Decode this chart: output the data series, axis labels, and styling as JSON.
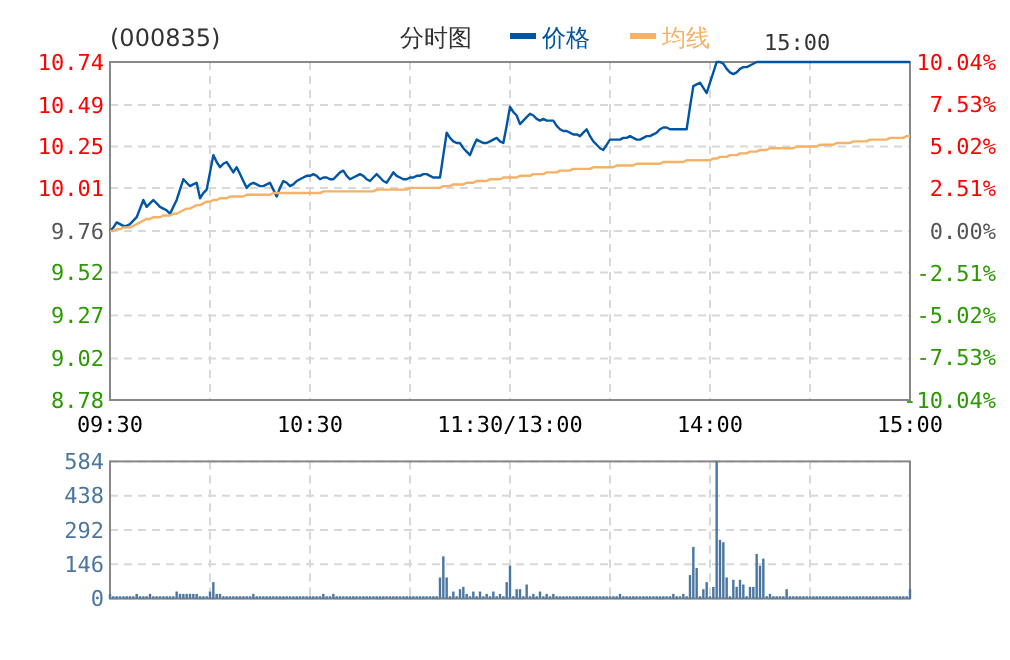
{
  "chart_data": [
    {
      "type": "line",
      "title": "(000835)",
      "subtitle": "分时图",
      "annotations": [
        "15:00"
      ],
      "legend": "top",
      "grid": true,
      "marker": "none",
      "line_style": "solid",
      "categories": [
        "09:30",
        null,
        null,
        null,
        null,
        null,
        null,
        null,
        null,
        null,
        null,
        null,
        null,
        null,
        null,
        null,
        null,
        null,
        null,
        null,
        null,
        null,
        null,
        null,
        null,
        null,
        null,
        null,
        null,
        null,
        null,
        null,
        null,
        null,
        null,
        null,
        null,
        null,
        null,
        null,
        null,
        null,
        null,
        null,
        null,
        null,
        null,
        null,
        null,
        null,
        null,
        null,
        null,
        null,
        null,
        null,
        null,
        null,
        null,
        null,
        "10:30",
        null,
        null,
        null,
        null,
        null,
        null,
        null,
        null,
        null,
        null,
        null,
        null,
        null,
        null,
        null,
        null,
        null,
        null,
        null,
        null,
        null,
        null,
        null,
        null,
        null,
        null,
        null,
        null,
        null,
        null,
        null,
        null,
        null,
        null,
        null,
        null,
        null,
        null,
        null,
        null,
        null,
        null,
        null,
        null,
        null,
        null,
        null,
        null,
        null,
        null,
        null,
        null,
        null,
        null,
        null,
        null,
        null,
        null,
        null,
        "11:30/13:00",
        null,
        null,
        null,
        null,
        null,
        null,
        null,
        null,
        null,
        null,
        null,
        null,
        null,
        null,
        null,
        null,
        null,
        null,
        null,
        null,
        null,
        null,
        null,
        null,
        null,
        null,
        null,
        null,
        null,
        null,
        null,
        null,
        null,
        null,
        null,
        null,
        null,
        null,
        null,
        null,
        null,
        null,
        null,
        null,
        null,
        null,
        null,
        null,
        null,
        null,
        null,
        null,
        null,
        null,
        null,
        null,
        null,
        null,
        null,
        "14:00",
        null,
        null,
        null,
        null,
        null,
        null,
        null,
        null,
        null,
        null,
        null,
        null,
        null,
        null,
        null,
        null,
        null,
        null,
        null,
        null,
        null,
        null,
        null,
        null,
        null,
        null,
        null,
        null,
        null,
        null,
        null,
        null,
        null,
        null,
        null,
        null,
        null,
        null,
        null,
        null,
        null,
        null,
        null,
        null,
        null,
        null,
        null,
        null,
        null,
        null,
        null,
        null,
        null,
        null,
        null,
        null,
        null,
        null,
        null,
        "15:00"
      ],
      "ylim": [
        8.78,
        10.74
      ],
      "yticks": [
        8.78,
        9.02,
        9.27,
        9.52,
        9.76,
        10.01,
        10.25,
        10.49,
        10.74
      ],
      "y2lim": [
        -10.04,
        10.04
      ],
      "y2ticks": [
        {
          "value": -10.04,
          "label": "-10.04%"
        },
        {
          "value": -7.53,
          "label": "-7.53%"
        },
        {
          "value": -5.02,
          "label": "-5.02%"
        },
        {
          "value": -2.51,
          "label": "-2.51%"
        },
        {
          "value": 0,
          "label": "0.00%"
        },
        {
          "value": 2.51,
          "label": "2.51%"
        },
        {
          "value": 5.02,
          "label": "5.02%"
        },
        {
          "value": 7.53,
          "label": "7.53%"
        },
        {
          "value": 10.04,
          "label": "10.04%"
        }
      ],
      "series": [
        {
          "name": "价格",
          "color": "#0055a5",
          "values": [
            9.76,
            9.78,
            9.81,
            9.8,
            9.79,
            9.79,
            9.8,
            9.82,
            9.84,
            9.89,
            9.94,
            9.9,
            9.92,
            9.94,
            9.92,
            9.9,
            9.89,
            9.88,
            9.86,
            9.9,
            9.94,
            10.0,
            10.06,
            10.04,
            10.02,
            10.03,
            10.04,
            9.95,
            9.98,
            10.0,
            10.1,
            10.2,
            10.16,
            10.13,
            10.15,
            10.16,
            10.13,
            10.1,
            10.13,
            10.09,
            10.05,
            10.01,
            10.03,
            10.04,
            10.03,
            10.02,
            10.02,
            10.03,
            10.04,
            10.0,
            9.96,
            10.01,
            10.05,
            10.04,
            10.02,
            10.03,
            10.05,
            10.06,
            10.07,
            10.08,
            10.08,
            10.09,
            10.08,
            10.06,
            10.07,
            10.07,
            10.06,
            10.06,
            10.08,
            10.1,
            10.11,
            10.08,
            10.06,
            10.07,
            10.08,
            10.09,
            10.08,
            10.06,
            10.05,
            10.07,
            10.09,
            10.07,
            10.05,
            10.04,
            10.07,
            10.1,
            10.08,
            10.07,
            10.06,
            10.06,
            10.07,
            10.07,
            10.08,
            10.08,
            10.09,
            10.09,
            10.08,
            10.07,
            10.07,
            10.07,
            10.2,
            10.33,
            10.3,
            10.28,
            10.27,
            10.27,
            10.24,
            10.22,
            10.2,
            10.25,
            10.29,
            10.28,
            10.27,
            10.27,
            10.28,
            10.29,
            10.3,
            10.28,
            10.27,
            10.37,
            10.48,
            10.45,
            10.43,
            10.38,
            10.4,
            10.42,
            10.44,
            10.43,
            10.41,
            10.4,
            10.41,
            10.4,
            10.4,
            10.4,
            10.37,
            10.35,
            10.34,
            10.34,
            10.33,
            10.32,
            10.32,
            10.31,
            10.33,
            10.35,
            10.31,
            10.28,
            10.26,
            10.24,
            10.23,
            10.26,
            10.29,
            10.29,
            10.29,
            10.29,
            10.3,
            10.3,
            10.31,
            10.3,
            10.29,
            10.29,
            10.3,
            10.31,
            10.31,
            10.32,
            10.33,
            10.35,
            10.36,
            10.36,
            10.35,
            10.35,
            10.35,
            10.35,
            10.35,
            10.35,
            10.48,
            10.6,
            10.61,
            10.62,
            10.59,
            10.56,
            10.62,
            10.68,
            10.74,
            10.74,
            10.73,
            10.7,
            10.68,
            10.67,
            10.68,
            10.7,
            10.71,
            10.71,
            10.72,
            10.73,
            10.74,
            10.74,
            10.74,
            10.74,
            10.74,
            10.74,
            10.74,
            10.74,
            10.74,
            10.74,
            10.74,
            10.74,
            10.74,
            10.74,
            10.74,
            10.74,
            10.74,
            10.74,
            10.74,
            10.74,
            10.74,
            10.74,
            10.74,
            10.74,
            10.74,
            10.74,
            10.74,
            10.74,
            10.74,
            10.74,
            10.74,
            10.74,
            10.74,
            10.74,
            10.74,
            10.74,
            10.74,
            10.74,
            10.74,
            10.74,
            10.74,
            10.74,
            10.74,
            10.74,
            10.74,
            10.74,
            10.74
          ]
        },
        {
          "name": "均线",
          "color": "#f5b266",
          "values": [
            9.76,
            9.76,
            9.77,
            9.77,
            9.78,
            9.78,
            9.78,
            9.79,
            9.8,
            9.81,
            9.82,
            9.83,
            9.83,
            9.84,
            9.84,
            9.84,
            9.85,
            9.85,
            9.85,
            9.86,
            9.86,
            9.87,
            9.88,
            9.89,
            9.89,
            9.9,
            9.91,
            9.91,
            9.92,
            9.93,
            9.93,
            9.94,
            9.94,
            9.95,
            9.95,
            9.95,
            9.96,
            9.96,
            9.96,
            9.96,
            9.96,
            9.97,
            9.97,
            9.97,
            9.97,
            9.97,
            9.97,
            9.97,
            9.97,
            9.98,
            9.98,
            9.98,
            9.98,
            9.98,
            9.98,
            9.98,
            9.98,
            9.98,
            9.98,
            9.98,
            9.98,
            9.98,
            9.98,
            9.98,
            9.99,
            9.99,
            9.99,
            9.99,
            9.99,
            9.99,
            9.99,
            9.99,
            9.99,
            9.99,
            9.99,
            9.99,
            9.99,
            9.99,
            9.99,
            9.99,
            10.0,
            10.0,
            10.0,
            10.0,
            10.0,
            10.0,
            10.0,
            10.0,
            10.0,
            10.0,
            10.01,
            10.01,
            10.01,
            10.01,
            10.01,
            10.01,
            10.01,
            10.01,
            10.01,
            10.01,
            10.02,
            10.02,
            10.02,
            10.03,
            10.03,
            10.03,
            10.03,
            10.04,
            10.04,
            10.04,
            10.05,
            10.05,
            10.05,
            10.05,
            10.06,
            10.06,
            10.06,
            10.06,
            10.07,
            10.07,
            10.07,
            10.07,
            10.07,
            10.08,
            10.08,
            10.08,
            10.08,
            10.09,
            10.09,
            10.09,
            10.09,
            10.1,
            10.1,
            10.1,
            10.1,
            10.11,
            10.11,
            10.11,
            10.11,
            10.12,
            10.12,
            10.12,
            10.12,
            10.12,
            10.12,
            10.13,
            10.13,
            10.13,
            10.13,
            10.13,
            10.13,
            10.13,
            10.14,
            10.14,
            10.14,
            10.14,
            10.14,
            10.14,
            10.15,
            10.15,
            10.15,
            10.15,
            10.15,
            10.15,
            10.15,
            10.15,
            10.16,
            10.16,
            10.16,
            10.16,
            10.16,
            10.16,
            10.16,
            10.17,
            10.17,
            10.17,
            10.17,
            10.17,
            10.17,
            10.17,
            10.17,
            10.18,
            10.18,
            10.19,
            10.19,
            10.19,
            10.2,
            10.2,
            10.2,
            10.21,
            10.21,
            10.21,
            10.22,
            10.22,
            10.22,
            10.23,
            10.23,
            10.23,
            10.24,
            10.24,
            10.24,
            10.24,
            10.24,
            10.24,
            10.24,
            10.24,
            10.25,
            10.25,
            10.25,
            10.25,
            10.25,
            10.25,
            10.25,
            10.26,
            10.26,
            10.26,
            10.26,
            10.26,
            10.27,
            10.27,
            10.27,
            10.27,
            10.27,
            10.28,
            10.28,
            10.28,
            10.28,
            10.28,
            10.29,
            10.29,
            10.29,
            10.29,
            10.29,
            10.29,
            10.3,
            10.3,
            10.3,
            10.3,
            10.3,
            10.31,
            10.31
          ]
        }
      ]
    },
    {
      "type": "bar",
      "grid": true,
      "color": "#4a76a0",
      "ylim": [
        0,
        584
      ],
      "yticks": [
        0,
        146,
        292,
        438,
        584
      ],
      "categories": [
        null,
        null,
        null,
        null,
        null,
        null,
        null,
        null,
        null,
        null,
        null,
        null,
        null,
        null,
        null,
        null,
        null,
        null,
        null,
        null,
        null,
        null,
        null,
        null,
        null,
        null,
        null,
        null,
        null,
        null,
        null,
        null,
        null,
        null,
        null,
        null,
        null,
        null,
        null,
        null,
        null,
        null,
        null,
        null,
        null,
        null,
        null,
        null,
        null,
        null,
        null,
        null,
        null,
        null,
        null,
        null,
        null,
        null,
        null,
        null,
        null,
        null,
        null,
        null,
        null,
        null,
        null,
        null,
        null,
        null,
        null,
        null,
        null,
        null,
        null,
        null,
        null,
        null,
        null,
        null,
        null,
        null,
        null,
        null,
        null,
        null,
        null,
        null,
        null,
        null,
        null,
        null,
        null,
        null,
        null,
        null,
        null,
        null,
        null,
        null,
        null,
        null,
        null,
        null,
        null,
        null,
        null,
        null,
        null,
        null,
        null,
        null,
        null,
        null,
        null,
        null,
        null,
        null,
        null,
        null,
        null,
        null,
        null,
        null,
        null,
        null,
        null,
        null,
        null,
        null,
        null,
        null,
        null,
        null,
        null,
        null,
        null,
        null,
        null,
        null,
        null,
        null,
        null,
        null,
        null,
        null,
        null,
        null,
        null,
        null,
        null,
        null,
        null,
        null,
        null,
        null,
        null,
        null,
        null,
        null,
        null,
        null,
        null,
        null,
        null,
        null,
        null,
        null,
        null,
        null,
        null,
        null,
        null,
        null,
        null,
        null,
        null,
        null,
        null,
        null,
        null,
        null,
        null,
        null,
        null,
        null,
        null,
        null,
        null,
        null,
        null,
        null,
        null,
        null,
        null,
        null,
        null,
        null,
        null,
        null,
        null,
        null,
        null,
        null,
        null,
        null,
        null,
        null,
        null,
        null,
        null,
        null,
        null,
        null,
        null,
        null,
        null,
        null,
        null,
        null,
        null,
        null,
        null,
        null,
        null,
        null,
        null,
        null,
        null,
        null,
        null,
        null,
        null,
        null,
        null,
        null,
        null,
        null,
        null,
        null,
        null
      ],
      "values": [
        20,
        10,
        10,
        10,
        10,
        10,
        10,
        10,
        20,
        10,
        10,
        10,
        20,
        10,
        10,
        10,
        10,
        10,
        10,
        10,
        30,
        20,
        20,
        20,
        20,
        20,
        20,
        10,
        10,
        10,
        30,
        70,
        20,
        20,
        10,
        10,
        10,
        10,
        10,
        10,
        10,
        10,
        10,
        20,
        10,
        10,
        10,
        10,
        10,
        10,
        10,
        10,
        10,
        10,
        10,
        10,
        10,
        10,
        10,
        10,
        10,
        10,
        10,
        10,
        20,
        10,
        10,
        20,
        10,
        10,
        10,
        10,
        10,
        10,
        10,
        10,
        10,
        10,
        10,
        10,
        10,
        10,
        10,
        10,
        10,
        10,
        10,
        10,
        10,
        10,
        10,
        10,
        10,
        10,
        10,
        10,
        10,
        10,
        10,
        90,
        180,
        90,
        10,
        30,
        10,
        40,
        50,
        20,
        10,
        30,
        10,
        30,
        10,
        20,
        10,
        30,
        10,
        20,
        10,
        70,
        140,
        10,
        40,
        40,
        10,
        60,
        10,
        20,
        10,
        30,
        10,
        20,
        10,
        20,
        10,
        10,
        10,
        10,
        10,
        10,
        10,
        10,
        10,
        10,
        10,
        10,
        10,
        10,
        10,
        10,
        10,
        10,
        10,
        20,
        10,
        10,
        10,
        10,
        10,
        10,
        10,
        10,
        10,
        10,
        10,
        10,
        10,
        10,
        10,
        20,
        10,
        10,
        20,
        10,
        100,
        220,
        130,
        10,
        40,
        70,
        10,
        50,
        584,
        250,
        240,
        90,
        10,
        80,
        50,
        80,
        60,
        10,
        50,
        50,
        190,
        140,
        170,
        10,
        20,
        10,
        10,
        10,
        10,
        40,
        10,
        10,
        10,
        10,
        10,
        10,
        10,
        10,
        10,
        10,
        10,
        10,
        10,
        10,
        10,
        10,
        10,
        10,
        10,
        10,
        10,
        10,
        10,
        10,
        10,
        10,
        10,
        10,
        10,
        10,
        10,
        10,
        10,
        10,
        10,
        10,
        40
      ]
    }
  ]
}
